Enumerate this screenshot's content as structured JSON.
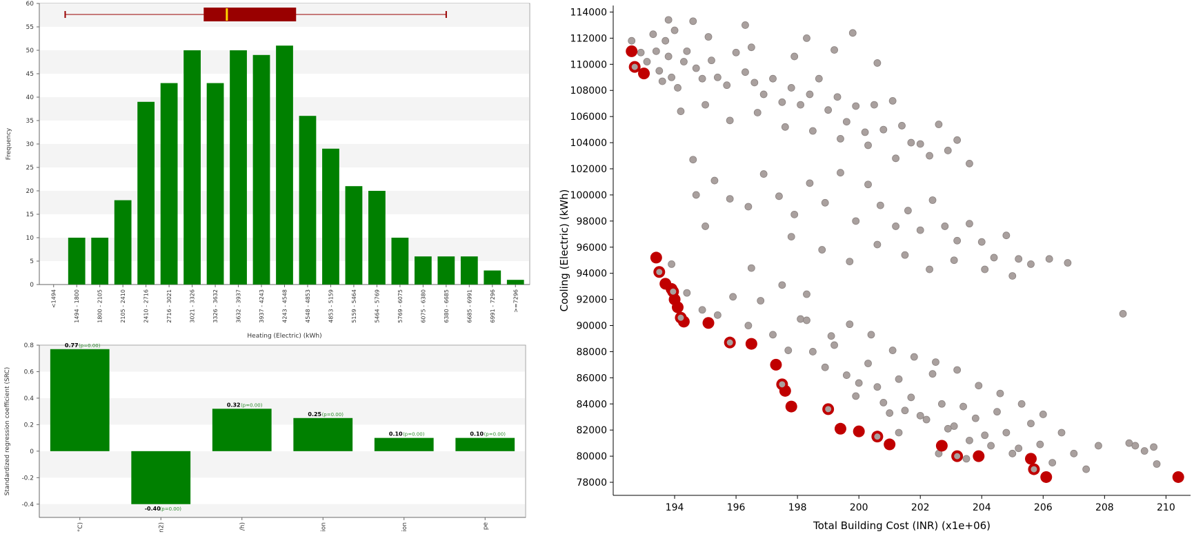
{
  "colors": {
    "bar_green": "#008000",
    "box_red": "#990000",
    "median_yellow": "#ffd700",
    "scatter_grey": "#a9a09e",
    "scatter_red": "#c00000",
    "label_green": "#2e8b2e"
  },
  "chart_data": [
    {
      "type": "bar",
      "ylabel": "Frequency",
      "xlabel": "Heating (Electric) (kWh)",
      "ylim": [
        0,
        60
      ],
      "yticks": [
        "0",
        "5",
        "10",
        "15",
        "20",
        "25",
        "30",
        "35",
        "40",
        "45",
        "50",
        "55",
        "60"
      ],
      "categories": [
        "<1494",
        "1494 - 1800",
        "1800 - 2105",
        "2105 - 2410",
        "2410 - 2716",
        "2716 - 3021",
        "3021 - 3326",
        "3326 - 3632",
        "3632 - 3937",
        "3937 - 4243",
        "4243 - 4548",
        "4548 - 4853",
        "4853 - 5159",
        "5159 - 5464",
        "5464 - 5769",
        "5769 - 6075",
        "6075 - 6380",
        "6380 - 6685",
        "6685 - 6991",
        "6991 - 7296",
        ">=7296"
      ],
      "values": [
        0,
        10,
        10,
        18,
        39,
        43,
        50,
        43,
        50,
        49,
        51,
        36,
        29,
        21,
        20,
        10,
        6,
        6,
        6,
        3,
        1
      ],
      "boxplot": {
        "whisker_low": 1494,
        "q1": 3326,
        "median": 3632,
        "q3": 4548,
        "whisker_high": 6533
      }
    },
    {
      "type": "bar",
      "ylabel": "Standardized regression coefficient (SRC)",
      "ylim": [
        -0.5,
        0.8
      ],
      "yticks": [
        "-0.4",
        "-0.2",
        "0",
        "0.2",
        "0.4",
        "0.6",
        "0.8"
      ],
      "categories": [
        "°C)",
        "n2)",
        "/h)",
        "ion",
        "ion",
        "pe"
      ],
      "values": [
        0.77,
        -0.4,
        0.32,
        0.25,
        0.1,
        0.1
      ],
      "value_labels": [
        "0.77",
        "-0.40",
        "0.32",
        "0.25",
        "0.10",
        "0.10"
      ],
      "p_labels": [
        "(p=0.00)",
        "(p=0.00)",
        "(p=0.00)",
        "(p=0.00)",
        "(p=0.00)",
        "(p=0.00)"
      ]
    },
    {
      "type": "scatter",
      "xlabel": "Total Building Cost (INR) (x1e+06)",
      "ylabel": "Cooling (Electric) (kWh)",
      "xlim": [
        192.0,
        210.8
      ],
      "ylim": [
        77000,
        114500
      ],
      "xticks": [
        "194",
        "196",
        "198",
        "200",
        "202",
        "204",
        "206",
        "208",
        "210"
      ],
      "yticks": [
        "78000",
        "80000",
        "82000",
        "84000",
        "86000",
        "88000",
        "90000",
        "92000",
        "94000",
        "96000",
        "98000",
        "100000",
        "102000",
        "104000",
        "106000",
        "108000",
        "110000",
        "112000",
        "114000"
      ],
      "series": [
        {
          "role": "all designs",
          "points": [
            [
              192.6,
              111.8
            ],
            [
              192.9,
              110.9
            ],
            [
              193.1,
              110.2
            ],
            [
              193.3,
              112.3
            ],
            [
              193.4,
              111.0
            ],
            [
              193.5,
              109.5
            ],
            [
              193.6,
              108.7
            ],
            [
              193.7,
              111.8
            ],
            [
              193.8,
              110.6
            ],
            [
              193.9,
              109.0
            ],
            [
              194.0,
              112.6
            ],
            [
              194.1,
              108.2
            ],
            [
              194.3,
              110.2
            ],
            [
              194.4,
              111.0
            ],
            [
              194.6,
              113.3
            ],
            [
              194.7,
              109.7
            ],
            [
              194.9,
              108.9
            ],
            [
              195.2,
              110.3
            ],
            [
              195.4,
              109.0
            ],
            [
              195.7,
              108.4
            ],
            [
              196.0,
              110.9
            ],
            [
              196.3,
              109.4
            ],
            [
              196.6,
              108.6
            ],
            [
              196.9,
              107.7
            ],
            [
              197.2,
              108.9
            ],
            [
              197.5,
              107.1
            ],
            [
              197.8,
              108.2
            ],
            [
              198.1,
              106.9
            ],
            [
              198.4,
              107.7
            ],
            [
              198.7,
              108.9
            ],
            [
              199.0,
              106.5
            ],
            [
              199.3,
              107.5
            ],
            [
              199.6,
              105.6
            ],
            [
              199.9,
              106.8
            ],
            [
              200.2,
              104.8
            ],
            [
              200.5,
              106.9
            ],
            [
              200.8,
              105.0
            ],
            [
              201.1,
              107.2
            ],
            [
              201.4,
              105.3
            ],
            [
              201.7,
              104.0
            ],
            [
              202.0,
              103.9
            ],
            [
              202.3,
              103.0
            ],
            [
              202.6,
              105.4
            ],
            [
              202.9,
              103.4
            ],
            [
              203.2,
              104.2
            ],
            [
              203.6,
              102.4
            ],
            [
              194.2,
              106.4
            ],
            [
              195.0,
              106.9
            ],
            [
              195.8,
              105.7
            ],
            [
              196.7,
              106.3
            ],
            [
              197.6,
              105.2
            ],
            [
              198.5,
              104.9
            ],
            [
              199.4,
              104.3
            ],
            [
              200.3,
              103.8
            ],
            [
              201.2,
              102.8
            ],
            [
              193.8,
              113.4
            ],
            [
              195.1,
              112.1
            ],
            [
              196.5,
              111.3
            ],
            [
              197.9,
              110.6
            ],
            [
              199.2,
              111.1
            ],
            [
              200.6,
              110.1
            ],
            [
              196.3,
              113.0
            ],
            [
              198.3,
              112.0
            ],
            [
              199.8,
              112.4
            ],
            [
              194.6,
              102.7
            ],
            [
              195.3,
              101.1
            ],
            [
              195.8,
              99.7
            ],
            [
              196.4,
              99.1
            ],
            [
              196.9,
              101.6
            ],
            [
              197.4,
              99.9
            ],
            [
              197.9,
              98.5
            ],
            [
              198.4,
              100.9
            ],
            [
              198.9,
              99.4
            ],
            [
              199.4,
              101.7
            ],
            [
              199.9,
              98.0
            ],
            [
              200.3,
              100.8
            ],
            [
              200.7,
              99.2
            ],
            [
              201.2,
              97.6
            ],
            [
              201.6,
              98.8
            ],
            [
              202.0,
              97.3
            ],
            [
              202.4,
              99.6
            ],
            [
              202.8,
              97.6
            ],
            [
              203.2,
              96.5
            ],
            [
              203.6,
              97.8
            ],
            [
              204.0,
              96.4
            ],
            [
              204.4,
              95.2
            ],
            [
              204.8,
              96.9
            ],
            [
              205.2,
              95.1
            ],
            [
              205.6,
              94.7
            ],
            [
              206.2,
              95.1
            ],
            [
              206.8,
              94.8
            ],
            [
              197.8,
              96.8
            ],
            [
              198.8,
              95.8
            ],
            [
              199.7,
              94.9
            ],
            [
              200.6,
              96.2
            ],
            [
              201.5,
              95.4
            ],
            [
              202.3,
              94.3
            ],
            [
              203.1,
              95.0
            ],
            [
              204.1,
              94.3
            ],
            [
              205.0,
              93.8
            ],
            [
              193.9,
              94.7
            ],
            [
              194.4,
              92.5
            ],
            [
              194.9,
              91.2
            ],
            [
              195.4,
              90.8
            ],
            [
              195.9,
              92.2
            ],
            [
              196.4,
              90.0
            ],
            [
              196.8,
              91.9
            ],
            [
              197.2,
              89.3
            ],
            [
              197.7,
              88.1
            ],
            [
              198.1,
              90.5
            ],
            [
              198.5,
              88.0
            ],
            [
              198.9,
              86.8
            ],
            [
              199.2,
              88.5
            ],
            [
              199.6,
              86.2
            ],
            [
              199.9,
              84.6
            ],
            [
              200.3,
              87.1
            ],
            [
              200.6,
              85.3
            ],
            [
              201.0,
              83.3
            ],
            [
              201.3,
              85.9
            ],
            [
              201.7,
              84.5
            ],
            [
              202.0,
              83.1
            ],
            [
              202.4,
              86.3
            ],
            [
              202.7,
              84.0
            ],
            [
              203.1,
              82.3
            ],
            [
              203.4,
              83.8
            ],
            [
              203.8,
              82.9
            ],
            [
              204.1,
              81.6
            ],
            [
              204.5,
              83.4
            ],
            [
              204.8,
              81.8
            ],
            [
              205.2,
              80.6
            ],
            [
              205.6,
              82.5
            ],
            [
              205.9,
              80.9
            ],
            [
              206.3,
              79.5
            ],
            [
              206.6,
              81.8
            ],
            [
              207.0,
              80.2
            ],
            [
              207.4,
              79.0
            ],
            [
              207.8,
              80.8
            ],
            [
              198.3,
              90.4
            ],
            [
              199.1,
              89.2
            ],
            [
              199.7,
              90.1
            ],
            [
              200.4,
              89.3
            ],
            [
              201.1,
              88.1
            ],
            [
              201.8,
              87.6
            ],
            [
              202.5,
              87.2
            ],
            [
              203.2,
              86.6
            ],
            [
              203.9,
              85.4
            ],
            [
              204.6,
              84.8
            ],
            [
              205.3,
              84.0
            ],
            [
              206.0,
              83.2
            ],
            [
              200.0,
              85.6
            ],
            [
              200.8,
              84.1
            ],
            [
              201.5,
              83.5
            ],
            [
              202.2,
              82.8
            ],
            [
              202.9,
              82.1
            ],
            [
              203.6,
              81.2
            ],
            [
              204.3,
              80.8
            ],
            [
              205.0,
              80.2
            ],
            [
              201.3,
              81.8
            ],
            [
              202.6,
              80.2
            ],
            [
              203.5,
              79.8
            ],
            [
              196.5,
              94.4
            ],
            [
              197.5,
              93.1
            ],
            [
              198.3,
              92.4
            ],
            [
              208.8,
              81.0
            ],
            [
              209.3,
              80.4
            ],
            [
              209.7,
              79.4
            ],
            [
              209.6,
              80.7
            ],
            [
              209.0,
              80.8
            ],
            [
              208.6,
              90.9
            ],
            [
              194.7,
              100.0
            ],
            [
              195.0,
              97.6
            ]
          ]
        },
        {
          "role": "pareto front",
          "points": [
            [
              192.6,
              111.0
            ],
            [
              192.7,
              109.8
            ],
            [
              193.0,
              109.3
            ],
            [
              193.4,
              95.2
            ],
            [
              193.5,
              94.1
            ],
            [
              193.7,
              93.2
            ],
            [
              193.9,
              92.8
            ],
            [
              193.95,
              92.6
            ],
            [
              194.0,
              92.0
            ],
            [
              194.1,
              91.4
            ],
            [
              194.2,
              90.6
            ],
            [
              194.3,
              90.3
            ],
            [
              195.1,
              90.2
            ],
            [
              195.8,
              88.7
            ],
            [
              196.5,
              88.6
            ],
            [
              197.3,
              87.0
            ],
            [
              197.5,
              85.5
            ],
            [
              197.6,
              85.0
            ],
            [
              197.8,
              83.8
            ],
            [
              199.0,
              83.6
            ],
            [
              199.4,
              82.1
            ],
            [
              200.0,
              81.9
            ],
            [
              200.6,
              81.5
            ],
            [
              201.0,
              80.9
            ],
            [
              202.7,
              80.8
            ],
            [
              203.2,
              80.0
            ],
            [
              203.9,
              80.0
            ],
            [
              205.6,
              79.8
            ],
            [
              205.7,
              79.0
            ],
            [
              206.1,
              78.4
            ],
            [
              210.4,
              78.4
            ]
          ]
        }
      ]
    }
  ]
}
